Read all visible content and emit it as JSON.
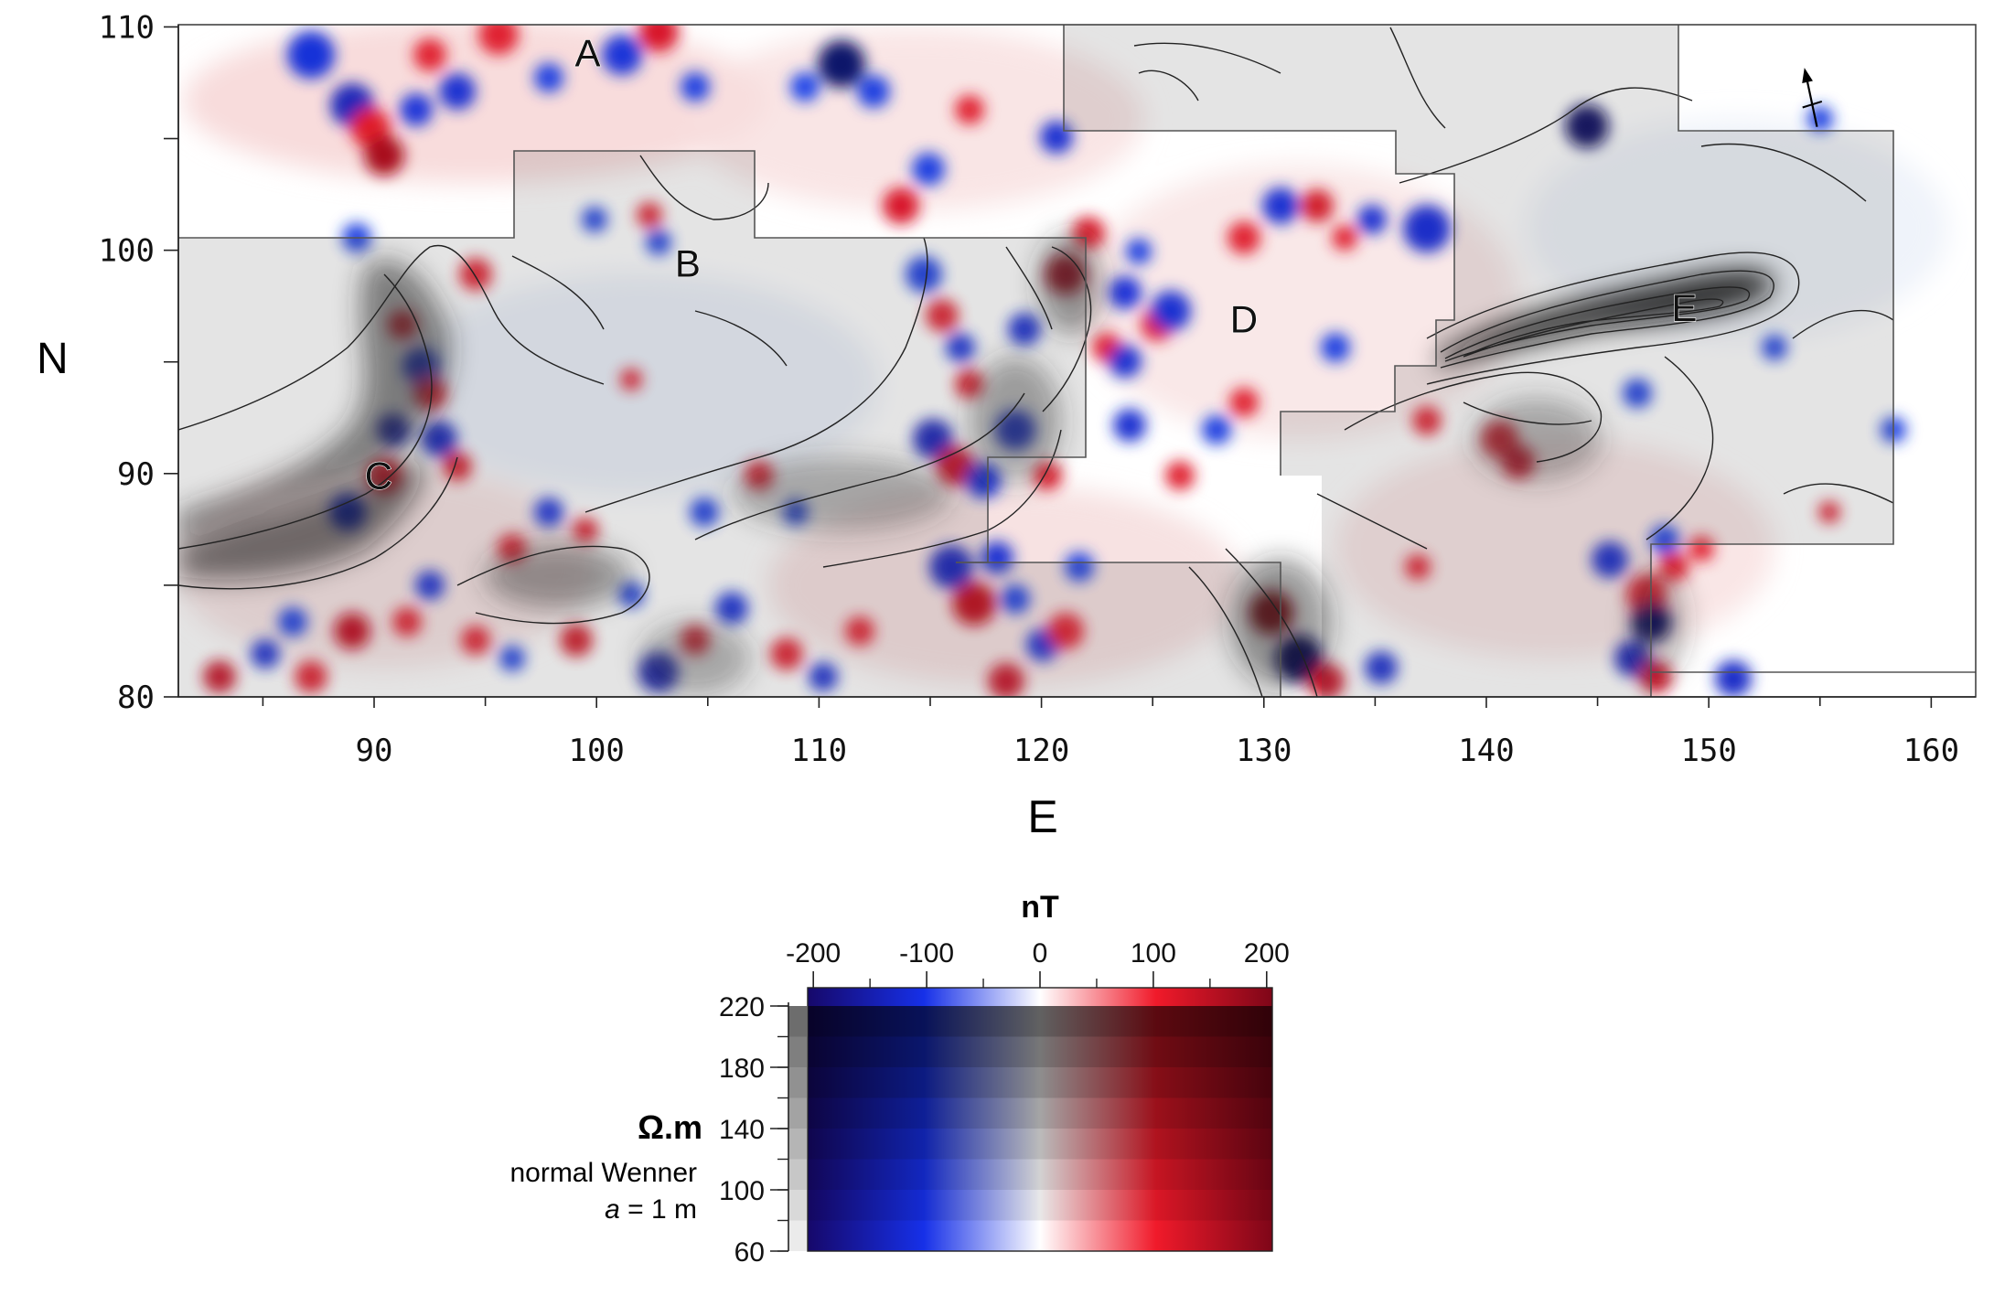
{
  "map": {
    "x_axis": {
      "label": "E",
      "ticks": [
        "90",
        "100",
        "110",
        "120",
        "130",
        "140",
        "150",
        "160"
      ],
      "range": [
        81.2,
        162
      ]
    },
    "y_axis": {
      "label": "N",
      "ticks": [
        "80",
        "90",
        "100",
        "110"
      ],
      "range": [
        80,
        110.1
      ]
    },
    "anomaly_labels": [
      {
        "text": "A",
        "e": 99.6,
        "n": 108.8
      },
      {
        "text": "B",
        "e": 104.1,
        "n": 99.4
      },
      {
        "text": "C",
        "e": 90.2,
        "n": 89.9
      },
      {
        "text": "D",
        "e": 129.1,
        "n": 96.9
      },
      {
        "text": "E",
        "e": 148.9,
        "n": 97.4
      }
    ],
    "north_arrow": "north-arrow-icon"
  },
  "legend": {
    "magnetic_unit": "nT",
    "magnetic_ticks": [
      "-200",
      "-100",
      "0",
      "100",
      "200"
    ],
    "magnetic_range": [
      -205,
      205
    ],
    "resistivity_unit": "Ω.m",
    "resistivity_ticks": [
      "220",
      "180",
      "140",
      "100",
      "60"
    ],
    "resistivity_range": [
      60,
      220
    ],
    "method_line1": "normal Wenner",
    "method_line2_italic": "a",
    "method_line2_rest": " = 1 m"
  },
  "colors": {
    "strong_negative": "#20107a",
    "negative": "#1c3fd6",
    "zero": "#ffffff",
    "positive": "#e8202a",
    "strong_positive": "#8a0a1c",
    "resistivity_max": "#3a3a3a"
  }
}
